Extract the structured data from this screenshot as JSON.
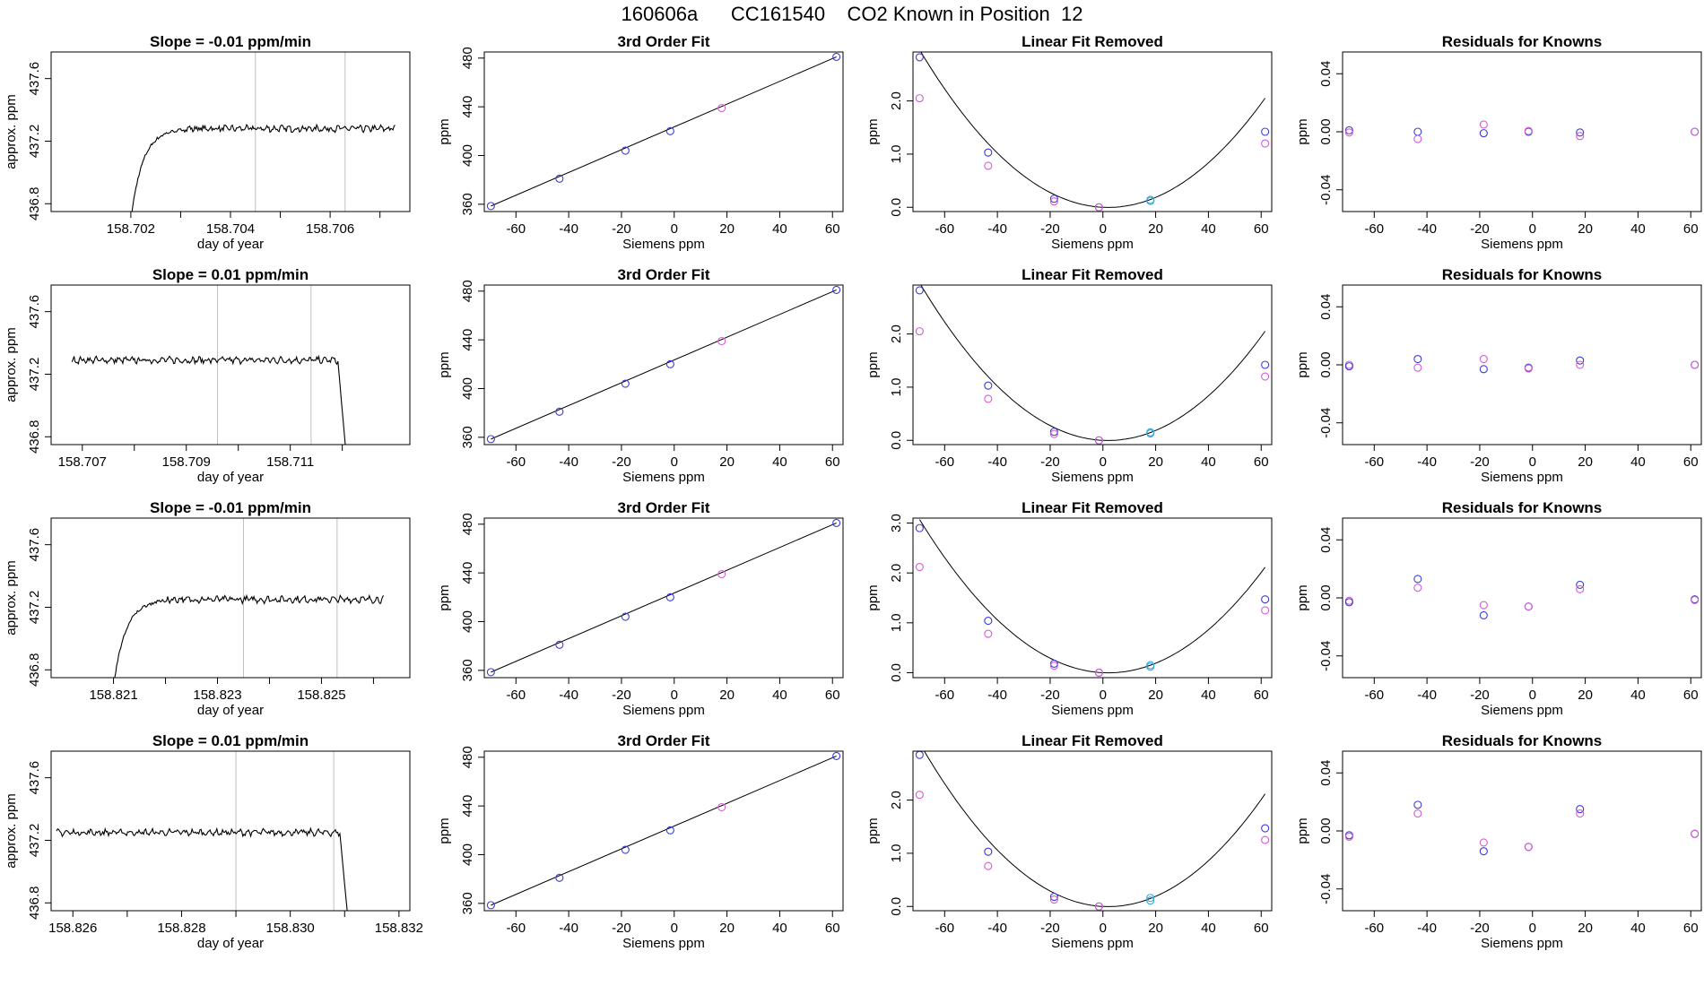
{
  "title": "160606a      CC161540    CO2 Known in Position  12",
  "colors": {
    "line": "#000000",
    "grid": "#bfbfbf",
    "blue": "#3b3bd6",
    "magenta": "#d65ad6",
    "cyan": "#3aa6d6",
    "red": "#e05050"
  },
  "chart_data": [
    {
      "type": "line",
      "row": 0,
      "title": "Slope =  -0.01  ppm/min",
      "xlabel": "day of year",
      "ylabel": "approx. ppm",
      "xlim": [
        158.7004,
        158.7076
      ],
      "ylim": [
        436.75,
        437.77
      ],
      "xticks": [
        158.702,
        158.703,
        158.704,
        158.705,
        158.706,
        158.707
      ],
      "xticklabels": [
        "158.702",
        "",
        "158.704",
        "",
        "158.706",
        ""
      ],
      "yticks": [
        436.8,
        437.2,
        437.6
      ],
      "yticklabels": [
        "436.8",
        "437.2",
        "437.6"
      ],
      "vlines": [
        158.7045,
        158.7063
      ],
      "trace": {
        "start": 158.702,
        "end": 158.7073,
        "shape": "rise",
        "level": 437.28
      }
    },
    {
      "type": "scatter",
      "row": 0,
      "title": "3rd Order Fit",
      "xlabel": "Siemens ppm",
      "ylabel": "ppm",
      "xlim": [
        -72,
        64
      ],
      "ylim": [
        354,
        485
      ],
      "xticks": [
        -60,
        -40,
        -20,
        0,
        20,
        40,
        60
      ],
      "yticks": [
        360,
        400,
        440,
        480
      ],
      "x": [
        -69.5,
        -43.5,
        -18.5,
        -1.5,
        18,
        61.5
      ],
      "y": [
        358.5,
        381,
        404,
        420,
        439,
        481
      ],
      "colors": [
        "blue",
        "blue",
        "blue",
        "blue",
        "magenta",
        "blue"
      ],
      "fit": "line"
    },
    {
      "type": "scatter",
      "row": 0,
      "title": "Linear Fit Removed",
      "xlabel": "Siemens ppm",
      "ylabel": "ppm",
      "xlim": [
        -72,
        64
      ],
      "ylim": [
        -0.08,
        2.92
      ],
      "xticks": [
        -60,
        -40,
        -20,
        0,
        20,
        40,
        60
      ],
      "yticks": [
        0,
        1,
        2
      ],
      "yticklabels": [
        "0.0",
        "1.0",
        "2.0"
      ],
      "x": [
        -69.5,
        -69.5,
        -43.5,
        -43.5,
        -18.5,
        -18.5,
        -1.5,
        -1.5,
        18,
        18,
        61.5,
        61.5
      ],
      "y": [
        2.82,
        2.05,
        1.03,
        0.78,
        0.16,
        0.11,
        0.0,
        0.0,
        0.14,
        0.12,
        1.42,
        1.2
      ],
      "colors": [
        "blue",
        "magenta",
        "blue",
        "magenta",
        "blue",
        "magenta",
        "blue",
        "magenta",
        "cyan",
        "cyan",
        "blue",
        "magenta"
      ],
      "fit": "curve",
      "curve": {
        "a": 0.00058,
        "b": -0.0023,
        "c": 0.0
      }
    },
    {
      "type": "scatter",
      "row": 0,
      "title": "Residuals for Knowns",
      "xlabel": "Siemens ppm",
      "ylabel": "ppm",
      "xlim": [
        -72,
        64
      ],
      "ylim": [
        -0.055,
        0.055
      ],
      "xticks": [
        -60,
        -40,
        -20,
        0,
        20,
        40,
        60
      ],
      "yticks": [
        -0.04,
        0,
        0.04
      ],
      "yticklabels": [
        "-0.04",
        "0.00",
        "0.04"
      ],
      "x": [
        -69.5,
        -69.5,
        -43.5,
        -43.5,
        -18.5,
        -18.5,
        -1.5,
        -1.5,
        18,
        18,
        61.5,
        61.5
      ],
      "y": [
        0.001,
        -0.0005,
        0.0,
        -0.005,
        0.005,
        -0.001,
        0.0,
        0.0005,
        -0.0005,
        -0.003,
        0.0,
        0.0
      ],
      "colors": [
        "blue",
        "magenta",
        "blue",
        "magenta",
        "magenta",
        "blue",
        "blue",
        "magenta",
        "blue",
        "magenta",
        "blue",
        "magenta"
      ]
    },
    {
      "type": "line",
      "row": 1,
      "title": "Slope =  0.01  ppm/min",
      "xlabel": "day of year",
      "ylabel": "approx. ppm",
      "xlim": [
        158.7064,
        158.7133
      ],
      "ylim": [
        436.75,
        437.77
      ],
      "xticks": [
        158.707,
        158.708,
        158.709,
        158.71,
        158.711,
        158.712
      ],
      "xticklabels": [
        "158.707",
        "",
        "158.709",
        "",
        "158.711",
        ""
      ],
      "yticks": [
        436.8,
        437.2,
        437.6
      ],
      "yticklabels": [
        "436.8",
        "437.2",
        "437.6"
      ],
      "vlines": [
        158.7096,
        158.7114
      ],
      "trace": {
        "start": 158.7068,
        "end": 158.7121,
        "shape": "fall",
        "level": 437.29
      }
    },
    {
      "type": "scatter",
      "row": 1,
      "title": "3rd Order Fit",
      "xlabel": "Siemens ppm",
      "ylabel": "ppm",
      "xlim": [
        -72,
        64
      ],
      "ylim": [
        354,
        485
      ],
      "xticks": [
        -60,
        -40,
        -20,
        0,
        20,
        40,
        60
      ],
      "yticks": [
        360,
        400,
        440,
        480
      ],
      "x": [
        -69.5,
        -43.5,
        -18.5,
        -1.5,
        18,
        61.5
      ],
      "y": [
        358.5,
        381,
        404,
        420,
        439,
        481
      ],
      "colors": [
        "blue",
        "blue",
        "blue",
        "blue",
        "magenta",
        "blue"
      ],
      "fit": "line"
    },
    {
      "type": "scatter",
      "row": 1,
      "title": "Linear Fit Removed",
      "xlabel": "Siemens ppm",
      "ylabel": "ppm",
      "xlim": [
        -72,
        64
      ],
      "ylim": [
        -0.08,
        2.92
      ],
      "xticks": [
        -60,
        -40,
        -20,
        0,
        20,
        40,
        60
      ],
      "yticks": [
        0,
        1,
        2
      ],
      "yticklabels": [
        "0.0",
        "1.0",
        "2.0"
      ],
      "x": [
        -69.5,
        -69.5,
        -43.5,
        -43.5,
        -18.5,
        -18.5,
        -1.5,
        -1.5,
        18,
        18,
        61.5,
        61.5
      ],
      "y": [
        2.82,
        2.05,
        1.03,
        0.78,
        0.16,
        0.12,
        0.0,
        0.0,
        0.15,
        0.13,
        1.42,
        1.2
      ],
      "colors": [
        "blue",
        "magenta",
        "blue",
        "magenta",
        "blue",
        "magenta",
        "blue",
        "magenta",
        "cyan",
        "cyan",
        "blue",
        "magenta"
      ],
      "fit": "curve",
      "curve": {
        "a": 0.00058,
        "b": -0.0023,
        "c": 0.0
      }
    },
    {
      "type": "scatter",
      "row": 1,
      "title": "Residuals for Knowns",
      "xlabel": "Siemens ppm",
      "ylabel": "ppm",
      "xlim": [
        -72,
        64
      ],
      "ylim": [
        -0.055,
        0.055
      ],
      "xticks": [
        -60,
        -40,
        -20,
        0,
        20,
        40,
        60
      ],
      "yticks": [
        -0.04,
        0,
        0.04
      ],
      "yticklabels": [
        "-0.04",
        "0.00",
        "0.04"
      ],
      "x": [
        -69.5,
        -69.5,
        -43.5,
        -43.5,
        -18.5,
        -18.5,
        -1.5,
        -1.5,
        18,
        18,
        61.5,
        61.5
      ],
      "y": [
        0.0,
        -0.001,
        0.004,
        -0.002,
        0.004,
        -0.003,
        -0.002,
        -0.0025,
        0.003,
        0.0,
        0.0,
        0.0
      ],
      "colors": [
        "magenta",
        "blue",
        "blue",
        "magenta",
        "magenta",
        "blue",
        "blue",
        "magenta",
        "blue",
        "magenta",
        "blue",
        "magenta"
      ]
    },
    {
      "type": "line",
      "row": 2,
      "title": "Slope =  -0.01  ppm/min",
      "xlabel": "day of year",
      "ylabel": "approx. ppm",
      "xlim": [
        158.8198,
        158.8267
      ],
      "ylim": [
        436.75,
        437.77
      ],
      "xticks": [
        158.821,
        158.822,
        158.823,
        158.824,
        158.825,
        158.826
      ],
      "xticklabels": [
        "158.821",
        "",
        "158.823",
        "",
        "158.825",
        ""
      ],
      "yticks": [
        436.8,
        437.2,
        437.6
      ],
      "yticklabels": [
        "436.8",
        "437.2",
        "437.6"
      ],
      "vlines": [
        158.8235,
        158.8253
      ],
      "trace": {
        "start": 158.821,
        "end": 158.8262,
        "shape": "rise",
        "level": 437.25
      }
    },
    {
      "type": "scatter",
      "row": 2,
      "title": "3rd Order Fit",
      "xlabel": "Siemens ppm",
      "ylabel": "ppm",
      "xlim": [
        -72,
        64
      ],
      "ylim": [
        354,
        485
      ],
      "xticks": [
        -60,
        -40,
        -20,
        0,
        20,
        40,
        60
      ],
      "yticks": [
        360,
        400,
        440,
        480
      ],
      "x": [
        -69.5,
        -43.5,
        -18.5,
        -1.5,
        18,
        61.5
      ],
      "y": [
        358.5,
        381,
        404,
        420,
        439,
        481
      ],
      "colors": [
        "blue",
        "blue",
        "blue",
        "blue",
        "magenta",
        "blue"
      ],
      "fit": "line"
    },
    {
      "type": "scatter",
      "row": 2,
      "title": "Linear Fit Removed",
      "xlabel": "Siemens ppm",
      "ylabel": "ppm",
      "xlim": [
        -72,
        64
      ],
      "ylim": [
        -0.1,
        3.1
      ],
      "xticks": [
        -60,
        -40,
        -20,
        0,
        20,
        40,
        60
      ],
      "yticks": [
        0,
        1,
        2,
        3
      ],
      "yticklabels": [
        "0.0",
        "1.0",
        "2.0",
        "3.0"
      ],
      "x": [
        -69.5,
        -69.5,
        -43.5,
        -43.5,
        -18.5,
        -18.5,
        -1.5,
        -1.5,
        18,
        18,
        61.5,
        61.5
      ],
      "y": [
        2.9,
        2.12,
        1.04,
        0.78,
        0.18,
        0.14,
        0.0,
        0.0,
        0.15,
        0.12,
        1.47,
        1.25
      ],
      "colors": [
        "blue",
        "magenta",
        "blue",
        "magenta",
        "blue",
        "magenta",
        "blue",
        "magenta",
        "cyan",
        "cyan",
        "blue",
        "magenta"
      ],
      "fit": "curve",
      "curve": {
        "a": 0.0006,
        "b": -0.0025,
        "c": 0.0
      }
    },
    {
      "type": "scatter",
      "row": 2,
      "title": "Residuals for Knowns",
      "xlabel": "Siemens ppm",
      "ylabel": "ppm",
      "xlim": [
        -72,
        64
      ],
      "ylim": [
        -0.055,
        0.055
      ],
      "xticks": [
        -60,
        -40,
        -20,
        0,
        20,
        40,
        60
      ],
      "yticks": [
        -0.04,
        0,
        0.04
      ],
      "yticklabels": [
        "-0.04",
        "0.00",
        "0.04"
      ],
      "x": [
        -69.5,
        -69.5,
        -43.5,
        -43.5,
        -18.5,
        -18.5,
        -1.5,
        -1.5,
        18,
        18,
        61.5,
        61.5
      ],
      "y": [
        -0.002,
        -0.003,
        0.013,
        0.007,
        -0.005,
        -0.012,
        -0.006,
        -0.006,
        0.009,
        0.006,
        -0.001,
        -0.0015
      ],
      "colors": [
        "magenta",
        "blue",
        "blue",
        "magenta",
        "magenta",
        "blue",
        "blue",
        "magenta",
        "blue",
        "magenta",
        "blue",
        "magenta"
      ]
    },
    {
      "type": "line",
      "row": 3,
      "title": "Slope =  0.01  ppm/min",
      "xlabel": "day of year",
      "ylabel": "approx. ppm",
      "xlim": [
        158.8256,
        158.8322
      ],
      "ylim": [
        436.75,
        437.77
      ],
      "xticks": [
        158.826,
        158.827,
        158.828,
        158.829,
        158.83,
        158.831,
        158.832
      ],
      "xticklabels": [
        "158.826",
        "",
        "158.828",
        "",
        "158.830",
        "",
        "158.832"
      ],
      "yticks": [
        436.8,
        437.2,
        437.6
      ],
      "yticklabels": [
        "436.8",
        "437.2",
        "437.6"
      ],
      "vlines": [
        158.829,
        158.8308
      ],
      "trace": {
        "start": 158.8257,
        "end": 158.8311,
        "shape": "fall",
        "level": 437.25
      }
    },
    {
      "type": "scatter",
      "row": 3,
      "title": "3rd Order Fit",
      "xlabel": "Siemens ppm",
      "ylabel": "ppm",
      "xlim": [
        -72,
        64
      ],
      "ylim": [
        354,
        485
      ],
      "xticks": [
        -60,
        -40,
        -20,
        0,
        20,
        40,
        60
      ],
      "yticks": [
        360,
        400,
        440,
        480
      ],
      "x": [
        -69.5,
        -43.5,
        -18.5,
        -1.5,
        18,
        61.5
      ],
      "y": [
        358.5,
        381,
        404,
        420,
        439,
        481
      ],
      "colors": [
        "blue",
        "blue",
        "blue",
        "blue",
        "magenta",
        "blue"
      ],
      "fit": "line"
    },
    {
      "type": "scatter",
      "row": 3,
      "title": "Linear Fit Removed",
      "xlabel": "Siemens ppm",
      "ylabel": "ppm",
      "xlim": [
        -72,
        64
      ],
      "ylim": [
        -0.08,
        2.92
      ],
      "xticks": [
        -60,
        -40,
        -20,
        0,
        20,
        40,
        60
      ],
      "yticks": [
        0,
        1,
        2
      ],
      "yticklabels": [
        "0.0",
        "1.0",
        "2.0"
      ],
      "x": [
        -69.5,
        -69.5,
        -43.5,
        -43.5,
        -18.5,
        -18.5,
        -1.5,
        -1.5,
        18,
        18,
        61.5,
        61.5
      ],
      "y": [
        2.85,
        2.1,
        1.03,
        0.76,
        0.18,
        0.13,
        0.0,
        0.0,
        0.16,
        0.11,
        1.47,
        1.25
      ],
      "colors": [
        "blue",
        "magenta",
        "blue",
        "magenta",
        "blue",
        "magenta",
        "blue",
        "magenta",
        "cyan",
        "cyan",
        "blue",
        "magenta"
      ],
      "fit": "curve",
      "curve": {
        "a": 0.0006,
        "b": -0.0025,
        "c": 0.0
      }
    },
    {
      "type": "scatter",
      "row": 3,
      "title": "Residuals for Knowns",
      "xlabel": "Siemens ppm",
      "ylabel": "ppm",
      "xlim": [
        -72,
        64
      ],
      "ylim": [
        -0.055,
        0.055
      ],
      "xticks": [
        -60,
        -40,
        -20,
        0,
        20,
        40,
        60
      ],
      "yticks": [
        -0.04,
        0,
        0.04
      ],
      "yticklabels": [
        "-0.04",
        "0.00",
        "0.04"
      ],
      "x": [
        -69.5,
        -69.5,
        -43.5,
        -43.5,
        -18.5,
        -18.5,
        -1.5,
        -1.5,
        18,
        18,
        61.5,
        61.5
      ],
      "y": [
        -0.003,
        -0.004,
        0.018,
        0.012,
        -0.008,
        -0.014,
        -0.011,
        -0.011,
        0.015,
        0.012,
        -0.002,
        -0.002
      ],
      "colors": [
        "blue",
        "magenta",
        "blue",
        "magenta",
        "magenta",
        "blue",
        "blue",
        "magenta",
        "blue",
        "magenta",
        "blue",
        "magenta"
      ]
    }
  ]
}
